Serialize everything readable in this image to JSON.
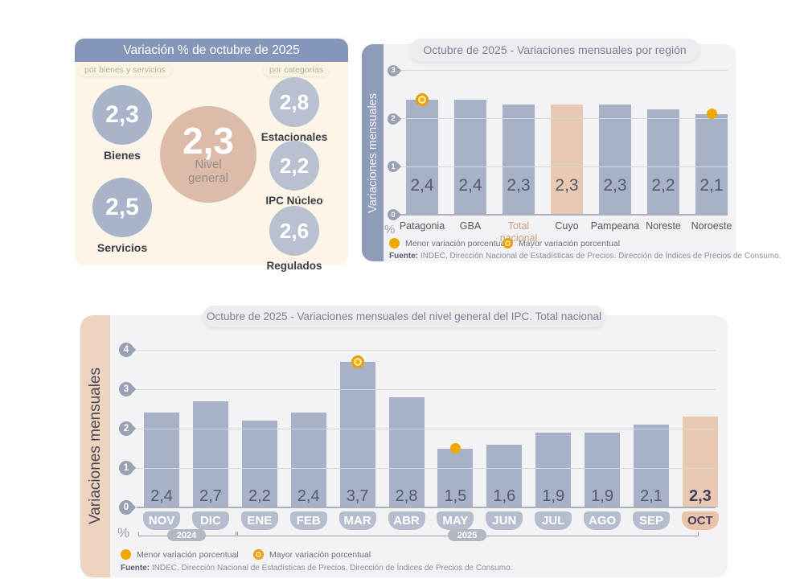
{
  "panel_summary": {
    "title": "Variación % de octubre de 2025",
    "tag_left": "por bienes y servicios",
    "tag_right": "por categorías",
    "items": {
      "bienes": {
        "value": "2,3",
        "label": "Bienes"
      },
      "servicios": {
        "value": "2,5",
        "label": "Servicios"
      },
      "nivel_general": {
        "value": "2,3",
        "label": "Nivel general"
      },
      "estacionales": {
        "value": "2,8",
        "label": "Estacionales"
      },
      "ipc_nucleo": {
        "value": "2,2",
        "label": "IPC Núcleo"
      },
      "regulados": {
        "value": "2,6",
        "label": "Regulados"
      }
    }
  },
  "panel_regions": {
    "title": "Octubre de 2025 - Variaciones mensuales por región",
    "y_axis_label": "Variaciones mensuales",
    "percent_symbol": "%",
    "legend_menor": "Menor variación porcentual",
    "legend_mayor": "Mayor variación porcentual",
    "source_label": "Fuente:",
    "source_text": " INDEC, Dirección Nacional de Estadísticas de Precios. Dirección de Índices de Precios de Consumo."
  },
  "panel_monthly": {
    "title": "Octubre de 2025 - Variaciones mensuales del nivel general del IPC. Total nacional",
    "y_axis_label": "Variaciones mensuales",
    "percent_symbol": "%",
    "legend_menor": "Menor variación porcentual",
    "legend_mayor": "Mayor variación porcentual",
    "source_label": "Fuente:",
    "source_text": " INDEC, Dirección Nacional de Estadísticas de Precios. Dirección de Índices de Precios de Consumo."
  },
  "colors": {
    "bar_blue": "#a7b1c7",
    "bar_tan": "#e9c9b1",
    "accent_orange": "#f0a800",
    "header_blue": "#8497b8",
    "sidebar_blue": "#8e9cba",
    "sidebar_tan": "#eed3c0",
    "panel_bg": "#f3f3f6",
    "cream_bg": "#fcf5e8"
  },
  "chart_data": [
    {
      "type": "bar",
      "title": "Octubre de 2025 - Variaciones mensuales por región",
      "ylabel": "Variaciones mensuales",
      "categories": [
        "Patagonia",
        "GBA",
        "Total nacional",
        "Cuyo",
        "Pampeana",
        "Noreste",
        "Noroeste"
      ],
      "values": [
        2.4,
        2.4,
        2.3,
        2.3,
        2.3,
        2.2,
        2.1
      ],
      "value_labels": [
        "2,4",
        "2,4",
        "2,3",
        "2,3",
        "2,3",
        "2,2",
        "2,1"
      ],
      "ylim": [
        0,
        3
      ],
      "yticks": [
        0,
        1,
        2,
        3
      ],
      "grid": true,
      "legend_position": "bottom",
      "highlight_bar_index": 3,
      "accent_label_index": 2,
      "marker_mayor_index": 0,
      "marker_menor_index": 6,
      "bar_color": "#a7b1c7",
      "highlight_color": "#e9c9b1"
    },
    {
      "type": "bar",
      "title": "Octubre de 2025 - Variaciones mensuales del nivel general del IPC. Total nacional",
      "ylabel": "Variaciones mensuales",
      "categories": [
        "NOV",
        "DIC",
        "ENE",
        "FEB",
        "MAR",
        "ABR",
        "MAY",
        "JUN",
        "JUL",
        "AGO",
        "SEP",
        "OCT"
      ],
      "values": [
        2.4,
        2.7,
        2.2,
        2.4,
        3.7,
        2.8,
        1.5,
        1.6,
        1.9,
        1.9,
        2.1,
        2.3
      ],
      "value_labels": [
        "2,4",
        "2,7",
        "2,2",
        "2,4",
        "3,7",
        "2,8",
        "1,5",
        "1,6",
        "1,9",
        "1,9",
        "2,1",
        "2,3"
      ],
      "ylim": [
        0,
        4
      ],
      "yticks": [
        0,
        1,
        2,
        3,
        4
      ],
      "grid": true,
      "legend_position": "bottom",
      "highlight_bar_index": 11,
      "marker_mayor_index": 4,
      "marker_menor_index": 6,
      "year_groups": [
        {
          "label": "2024",
          "from": 0,
          "to": 1
        },
        {
          "label": "2025",
          "from": 2,
          "to": 11
        }
      ],
      "bar_color": "#a7b1c7",
      "highlight_color": "#e9c9b1"
    }
  ]
}
